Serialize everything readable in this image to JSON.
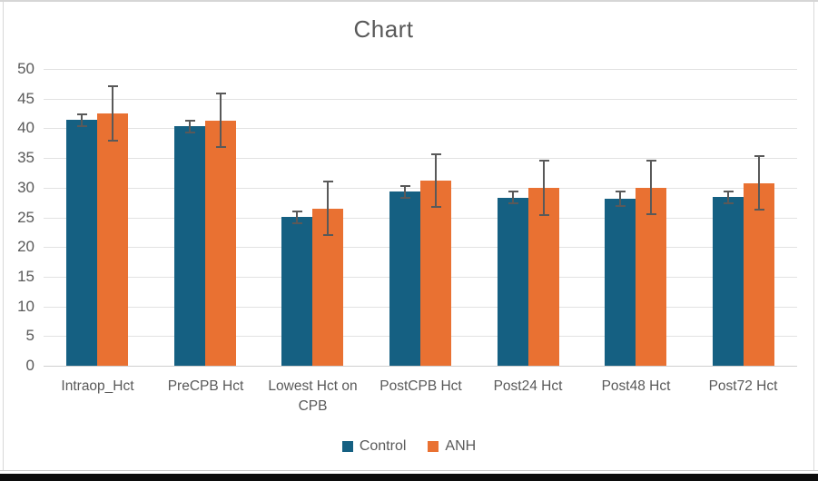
{
  "chart_data": {
    "type": "bar",
    "title": "Chart",
    "categories": [
      "Intraop_Hct",
      "PreCPB Hct",
      "Lowest Hct on CPB",
      "PostCPB Hct",
      "Post24 Hct",
      "Post48 Hct",
      "Post72 Hct"
    ],
    "series": [
      {
        "name": "Control",
        "color": "#156082",
        "values": [
          41.4,
          40.3,
          25.0,
          29.3,
          28.3,
          28.1,
          28.4
        ],
        "errors": [
          1.0,
          1.0,
          1.0,
          1.0,
          1.0,
          1.2,
          1.0
        ]
      },
      {
        "name": "ANH",
        "color": "#E97132",
        "values": [
          42.5,
          41.3,
          26.5,
          31.2,
          30.0,
          30.0,
          30.8
        ],
        "errors": [
          4.6,
          4.5,
          4.5,
          4.5,
          4.6,
          4.5,
          4.5
        ]
      }
    ],
    "xlabel": "",
    "ylabel": "",
    "ylim": [
      0,
      50
    ],
    "yticks": [
      0,
      5,
      10,
      15,
      20,
      25,
      30,
      35,
      40,
      45,
      50
    ],
    "grid": true,
    "legend_position": "bottom",
    "colors": {
      "text": "#595959",
      "gridline": "#e2e2e2",
      "error_bar": "#595959"
    }
  }
}
